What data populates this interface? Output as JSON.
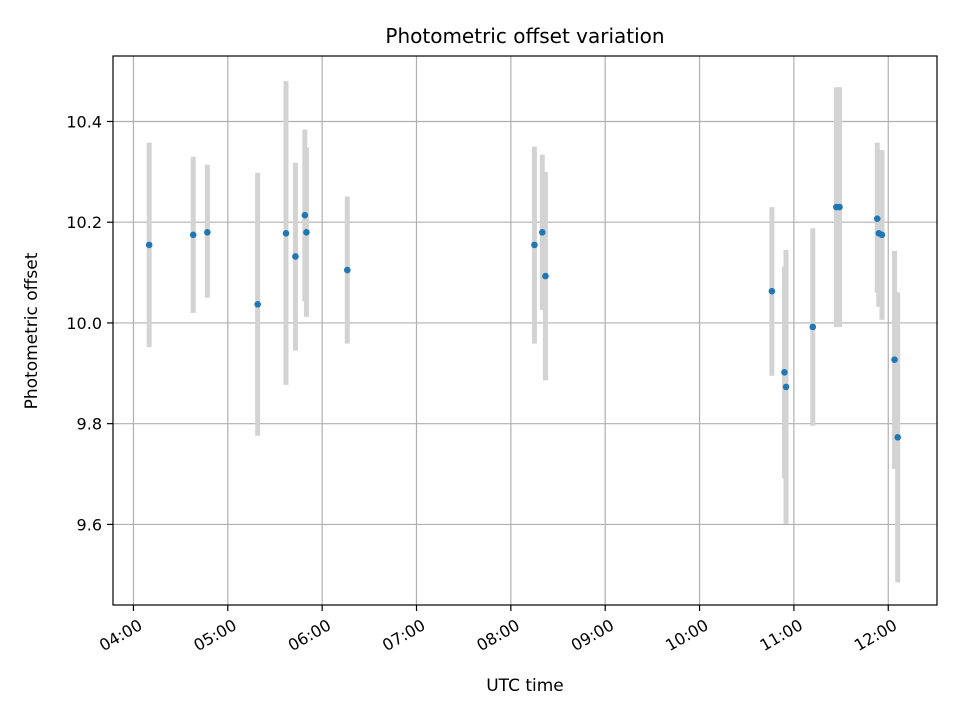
{
  "chart_data": {
    "type": "scatter",
    "title": "Photometric offset variation",
    "xlabel": "UTC time",
    "ylabel": "Photometric offset",
    "x_ticks": [
      "04:00",
      "05:00",
      "06:00",
      "07:00",
      "08:00",
      "09:00",
      "10:00",
      "11:00",
      "12:00"
    ],
    "y_ticks": [
      "9.6",
      "9.8",
      "10.0",
      "10.2",
      "10.4"
    ],
    "xlim": [
      "03:47",
      "12:31"
    ],
    "ylim": [
      9.44,
      10.53
    ],
    "grid": true,
    "colors": {
      "point": "#1f77b4",
      "errorbar": "#d3d3d3",
      "grid": "#b0b0b0"
    },
    "points": [
      {
        "t": "04:10",
        "y": 10.155,
        "lo": 9.952,
        "hi": 10.358
      },
      {
        "t": "04:38",
        "y": 10.175,
        "lo": 10.02,
        "hi": 10.33
      },
      {
        "t": "04:47",
        "y": 10.18,
        "lo": 10.05,
        "hi": 10.314
      },
      {
        "t": "05:19",
        "y": 10.037,
        "lo": 9.776,
        "hi": 10.298
      },
      {
        "t": "05:37",
        "y": 10.178,
        "lo": 9.877,
        "hi": 10.48
      },
      {
        "t": "05:43",
        "y": 10.132,
        "lo": 9.945,
        "hi": 10.318
      },
      {
        "t": "05:49",
        "y": 10.214,
        "lo": 10.043,
        "hi": 10.384
      },
      {
        "t": "05:50",
        "y": 10.18,
        "lo": 10.012,
        "hi": 10.348
      },
      {
        "t": "06:16",
        "y": 10.105,
        "lo": 9.959,
        "hi": 10.251
      },
      {
        "t": "08:15",
        "y": 10.155,
        "lo": 9.959,
        "hi": 10.35
      },
      {
        "t": "08:20",
        "y": 10.18,
        "lo": 10.026,
        "hi": 10.334
      },
      {
        "t": "08:22",
        "y": 10.093,
        "lo": 9.886,
        "hi": 10.3
      },
      {
        "t": "10:46",
        "y": 10.063,
        "lo": 9.895,
        "hi": 10.23
      },
      {
        "t": "10:54",
        "y": 9.902,
        "lo": 9.692,
        "hi": 10.112
      },
      {
        "t": "10:55",
        "y": 9.873,
        "lo": 9.601,
        "hi": 10.145
      },
      {
        "t": "11:12",
        "y": 9.992,
        "lo": 9.796,
        "hi": 10.188
      },
      {
        "t": "11:27",
        "y": 10.23,
        "lo": 9.992,
        "hi": 10.468
      },
      {
        "t": "11:29",
        "y": 10.23,
        "lo": 9.992,
        "hi": 10.468
      },
      {
        "t": "11:53",
        "y": 10.207,
        "lo": 10.06,
        "hi": 10.358
      },
      {
        "t": "11:54",
        "y": 10.178,
        "lo": 10.032,
        "hi": 10.325
      },
      {
        "t": "11:56",
        "y": 10.175,
        "lo": 10.006,
        "hi": 10.343
      },
      {
        "t": "12:04",
        "y": 9.927,
        "lo": 9.71,
        "hi": 10.143
      },
      {
        "t": "12:06",
        "y": 9.773,
        "lo": 9.485,
        "hi": 10.061
      }
    ]
  }
}
